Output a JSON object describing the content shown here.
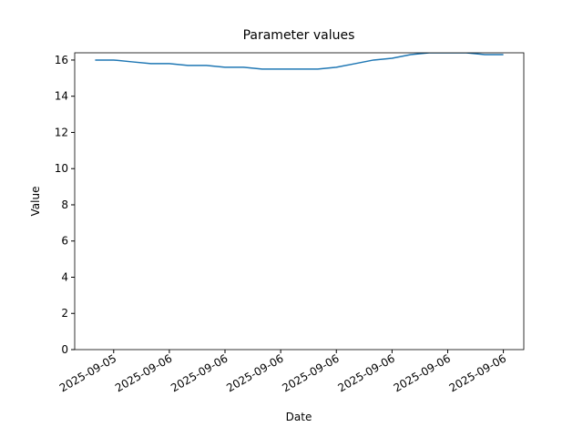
{
  "chart_data": {
    "type": "line",
    "title": "Parameter values",
    "x_label": "Date",
    "y_label": "Value",
    "x": [
      0,
      1,
      2,
      3,
      4,
      5,
      6,
      7,
      8,
      9,
      10,
      11,
      12,
      13,
      14,
      15,
      16,
      17,
      18,
      19,
      20,
      21,
      22
    ],
    "series": [
      {
        "color": "#1f77b4",
        "values": [
          16.0,
          16.0,
          15.9,
          15.8,
          15.8,
          15.7,
          15.7,
          15.6,
          15.6,
          15.5,
          15.5,
          15.5,
          15.5,
          15.6,
          15.8,
          16.0,
          16.1,
          16.3,
          16.4,
          16.4,
          16.4,
          16.3,
          16.3
        ]
      }
    ],
    "xlim": [
      -1.1,
      23.1
    ],
    "xticks": [
      {
        "value": 1,
        "label": "2025-09-05"
      },
      {
        "value": 4,
        "label": "2025-09-06"
      },
      {
        "value": 7,
        "label": "2025-09-06"
      },
      {
        "value": 10,
        "label": "2025-09-06"
      },
      {
        "value": 13,
        "label": "2025-09-06"
      },
      {
        "value": 16,
        "label": "2025-09-06"
      },
      {
        "value": 19,
        "label": "2025-09-06"
      },
      {
        "value": 22,
        "label": "2025-09-06"
      }
    ],
    "ylim": [
      0,
      16.4
    ],
    "yticks": [
      0,
      2,
      4,
      6,
      8,
      10,
      12,
      14,
      16
    ],
    "grid": false
  }
}
